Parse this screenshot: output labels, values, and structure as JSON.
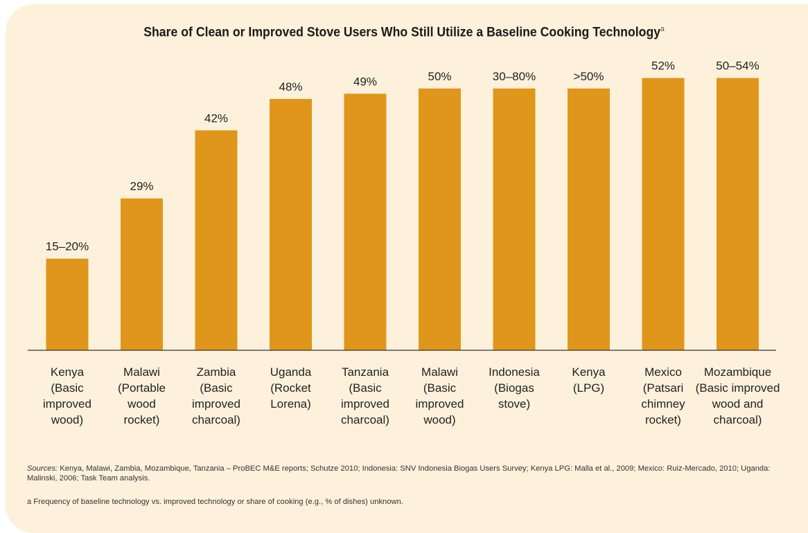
{
  "title": "Share of Clean or Improved Stove Users Who Still Utilize a Baseline Cooking Technology",
  "title_marker": "a",
  "colors": {
    "bar": "#e0961a",
    "background": "#fdf1dc",
    "axis": "#333333"
  },
  "chart_data": {
    "type": "bar",
    "title": "Share of Clean or Improved Stove Users Who Still Utilize a Baseline Cooking Technology",
    "categories": [
      [
        "Kenya",
        "(Basic",
        "improved",
        "wood)"
      ],
      [
        "Malawi",
        "(Portable",
        "wood",
        "rocket)"
      ],
      [
        "Zambia",
        "(Basic",
        "improved",
        "charcoal)"
      ],
      [
        "Uganda",
        "(Rocket",
        "Lorena)"
      ],
      [
        "Tanzania",
        "(Basic",
        "improved",
        "charcoal)"
      ],
      [
        "Malawi",
        "(Basic",
        "improved",
        "wood)"
      ],
      [
        "Indonesia",
        "(Biogas",
        "stove)"
      ],
      [
        "Kenya",
        "(LPG)"
      ],
      [
        "Mexico",
        "(Patsari",
        "chimney",
        "rocket)"
      ],
      [
        "Mozambique",
        "(Basic improved",
        "wood and",
        "charcoal)"
      ]
    ],
    "values": [
      17.5,
      29,
      42,
      48,
      49,
      50,
      50,
      50,
      52,
      52
    ],
    "labels": [
      "15–20%",
      "29%",
      "42%",
      "48%",
      "49%",
      "50%",
      "30–80%",
      ">50%",
      "52%",
      "50–54%"
    ],
    "xlabel": "",
    "ylabel": "",
    "ylim": [
      0,
      55
    ],
    "grid": false,
    "legend": false
  },
  "sources": {
    "prefix": "Sources:",
    "text": " Kenya, Malawi, Zambia, Mozambique, Tanzania – ProBEC M&E reports; Schutze 2010; Indonesia: SNV Indonesia Biogas Users Survey; Kenya LPG: Malla et al., 2009; Mexico: Ruiz-Mercado, 2010; Uganda: Malinski, 2006; Task Team analysis."
  },
  "footnote": "a  Frequency of baseline technology vs. improved technology or share of cooking (e.g., % of dishes) unknown."
}
